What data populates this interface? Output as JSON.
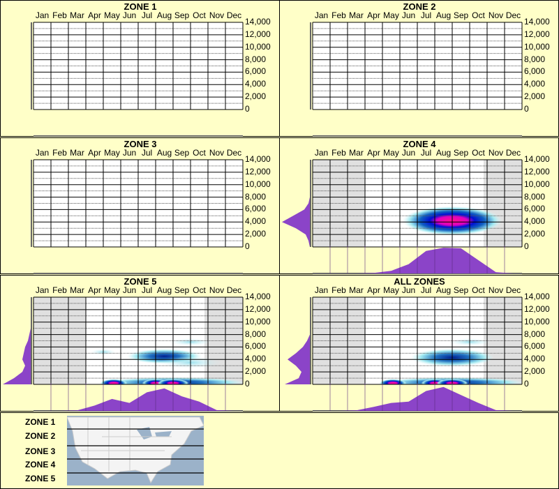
{
  "months": [
    "Jan",
    "Feb",
    "Mar",
    "Apr",
    "May",
    "Jun",
    "Jul",
    "Aug",
    "Sep",
    "Oct",
    "Nov",
    "Dec"
  ],
  "yticks": [
    "14,000",
    "12,000",
    "10,000",
    "8,000",
    "6,000",
    "4,000",
    "2,000",
    "0"
  ],
  "colors": {
    "background": "#ffffc8",
    "distribution": "#8b44c8",
    "shaded": "#e0e0e0",
    "heat_low": "#a0e8f0",
    "heat_mid": "#0010d0",
    "heat_high": "#ff1090"
  },
  "chart_data": [
    {
      "type": "heatmap",
      "title": "ZONE 1",
      "ylim": [
        0,
        14000
      ],
      "shaded_months": [],
      "hotspots": [],
      "month_distribution": [],
      "elevation_distribution": []
    },
    {
      "type": "heatmap",
      "title": "ZONE 2",
      "ylim": [
        0,
        14000
      ],
      "shaded_months": [],
      "hotspots": [],
      "month_distribution": [],
      "elevation_distribution": []
    },
    {
      "type": "heatmap",
      "title": "ZONE 3",
      "ylim": [
        0,
        14000
      ],
      "shaded_months": [],
      "hotspots": [],
      "month_distribution": [],
      "elevation_distribution": []
    },
    {
      "type": "heatmap",
      "title": "ZONE 4",
      "ylim": [
        0,
        14000
      ],
      "shaded_months": [
        "Jan",
        "Feb",
        "Mar",
        "Nov",
        "Dec"
      ],
      "hotspots": [
        {
          "month": 7.5,
          "elevation": 4200,
          "spread_months": 2.2,
          "spread_elev": 1800,
          "intensity": 1.0
        }
      ],
      "month_distribution": [
        0,
        0,
        0,
        0.02,
        0.1,
        0.35,
        0.85,
        0.97,
        0.95,
        0.5,
        0.05,
        0
      ],
      "elevation_distribution": [
        0,
        0.05,
        0.15,
        0.5,
        1,
        0.6,
        0.2,
        0.05,
        0,
        0,
        0,
        0,
        0,
        0,
        0
      ]
    },
    {
      "type": "heatmap",
      "title": "ZONE 5",
      "ylim": [
        0,
        14000
      ],
      "shaded_months": [
        "Jan",
        "Feb",
        "Mar",
        "Nov",
        "Dec"
      ],
      "hotspots": [
        {
          "month": 7.5,
          "elevation": 300,
          "spread_months": 3.5,
          "spread_elev": 700,
          "intensity": 0.7
        },
        {
          "month": 4.1,
          "elevation": 200,
          "spread_months": 0.6,
          "spread_elev": 500,
          "intensity": 1.0
        },
        {
          "month": 6.5,
          "elevation": 200,
          "spread_months": 0.6,
          "spread_elev": 500,
          "intensity": 0.9
        },
        {
          "month": 7.5,
          "elevation": 200,
          "spread_months": 0.7,
          "spread_elev": 500,
          "intensity": 1.0
        },
        {
          "month": 7,
          "elevation": 4500,
          "spread_months": 1.8,
          "spread_elev": 1000,
          "intensity": 0.6
        },
        {
          "month": 8.5,
          "elevation": 3500,
          "spread_months": 1.5,
          "spread_elev": 800,
          "intensity": 0.3
        },
        {
          "month": 8.5,
          "elevation": 6800,
          "spread_months": 1,
          "spread_elev": 500,
          "intensity": 0.2
        },
        {
          "month": 3.5,
          "elevation": 5200,
          "spread_months": 0.6,
          "spread_elev": 400,
          "intensity": 0.2
        }
      ],
      "month_distribution": [
        0,
        0,
        0.02,
        0.2,
        0.45,
        0.3,
        0.7,
        0.85,
        0.55,
        0.35,
        0.03,
        0
      ],
      "elevation_distribution": [
        1,
        0.6,
        0.3,
        0.2,
        0.3,
        0.25,
        0.2,
        0.1,
        0.05,
        0,
        0,
        0,
        0,
        0,
        0
      ]
    },
    {
      "type": "heatmap",
      "title": "ALL ZONES",
      "ylim": [
        0,
        14000
      ],
      "shaded_months": [
        "Jan",
        "Feb",
        "Mar",
        "Nov",
        "Dec"
      ],
      "hotspots": [
        {
          "month": 7.5,
          "elevation": 300,
          "spread_months": 3.5,
          "spread_elev": 700,
          "intensity": 0.7
        },
        {
          "month": 4.1,
          "elevation": 200,
          "spread_months": 0.6,
          "spread_elev": 500,
          "intensity": 1.0
        },
        {
          "month": 6.5,
          "elevation": 200,
          "spread_months": 0.6,
          "spread_elev": 500,
          "intensity": 0.9
        },
        {
          "month": 7.5,
          "elevation": 200,
          "spread_months": 0.7,
          "spread_elev": 500,
          "intensity": 1.0
        },
        {
          "month": 7.5,
          "elevation": 4300,
          "spread_months": 2,
          "spread_elev": 1200,
          "intensity": 0.75
        },
        {
          "month": 8.5,
          "elevation": 6800,
          "spread_months": 1,
          "spread_elev": 500,
          "intensity": 0.2
        }
      ],
      "month_distribution": [
        0,
        0,
        0.02,
        0.15,
        0.3,
        0.35,
        0.75,
        0.9,
        0.6,
        0.3,
        0.03,
        0
      ],
      "elevation_distribution": [
        0.9,
        0.4,
        0.3,
        0.5,
        0.8,
        0.5,
        0.25,
        0.1,
        0,
        0,
        0,
        0,
        0,
        0,
        0
      ]
    }
  ],
  "legend": {
    "zones": [
      "ZONE 1",
      "ZONE 2",
      "ZONE 3",
      "ZONE 4",
      "ZONE 5"
    ]
  }
}
